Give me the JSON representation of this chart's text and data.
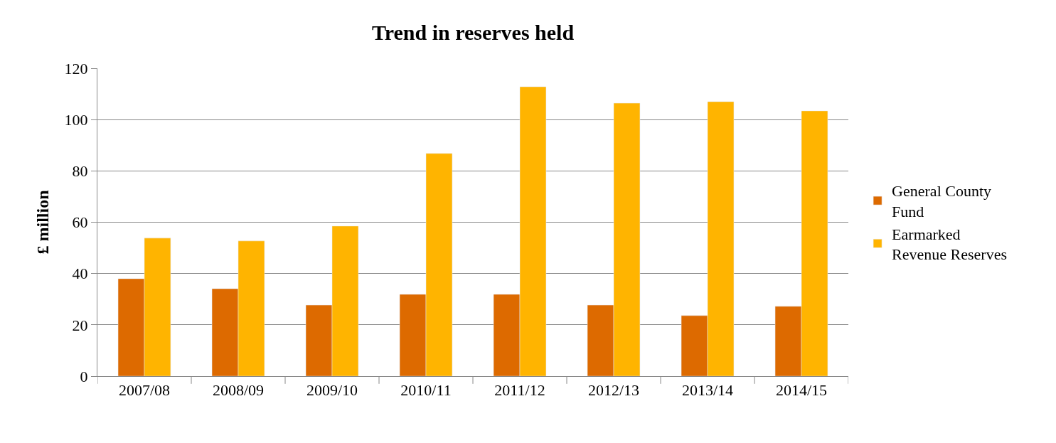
{
  "chart_data": {
    "type": "bar",
    "title": "Trend in reserves held",
    "ylabel": "£ million",
    "categories": [
      "2007/08",
      "2008/09",
      "2009/10",
      "2010/11",
      "2011/12",
      "2012/13",
      "2013/14",
      "2014/15"
    ],
    "series": [
      {
        "name": "General County Fund",
        "color": "#dd6a00",
        "values": [
          38.0,
          34.1,
          27.7,
          31.9,
          31.9,
          27.7,
          23.6,
          27.2
        ]
      },
      {
        "name": "Earmarked Revenue Reserves",
        "color": "#ffb400",
        "values": [
          53.8,
          52.7,
          58.5,
          86.8,
          112.8,
          106.4,
          107.0,
          103.4
        ]
      }
    ],
    "ylim": [
      0,
      120
    ],
    "yticks": [
      0,
      20,
      40,
      60,
      80,
      100,
      120
    ],
    "grid": "y",
    "legend": "right"
  }
}
